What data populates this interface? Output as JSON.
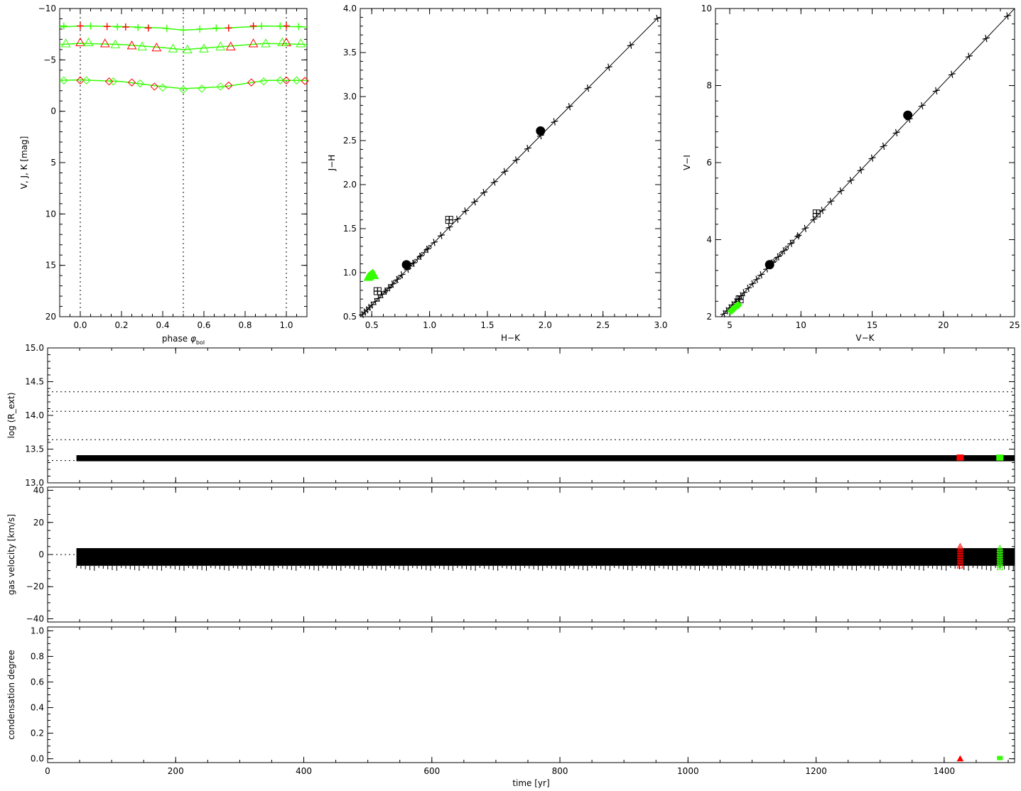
{
  "colors": {
    "axis": "#000000",
    "model": "#000000",
    "red": "#ff0000",
    "green": "#33ff00"
  },
  "chart_data": [
    {
      "id": "light_curves",
      "type": "scatter",
      "xlabel": "phase φbol",
      "xlabel_main": "phase ",
      "xlabel_sym": "φ",
      "xlabel_sub": "bol",
      "ylabel": "V, J, K  [mag]",
      "xlim": [
        -0.1,
        1.1
      ],
      "ylim": [
        20,
        -10
      ],
      "xticks": [
        0.0,
        0.2,
        0.4,
        0.6,
        0.8,
        1.0
      ],
      "xtick_labels": [
        "0.0",
        "0.2",
        "0.4",
        "0.6",
        "0.8",
        "1.0"
      ],
      "yticks": [
        -10,
        -5,
        0,
        5,
        10,
        15,
        20
      ],
      "ytick_labels": [
        "−10",
        "−5",
        "0",
        "5",
        "10",
        "15",
        "20"
      ],
      "vlines": [
        0.0,
        0.5,
        1.0
      ],
      "series": [
        {
          "band": "K",
          "marker": "plus",
          "curve": [
            [
              -0.1,
              -8.2
            ],
            [
              0.0,
              -8.3
            ],
            [
              0.2,
              -8.25
            ],
            [
              0.4,
              -8.1
            ],
            [
              0.5,
              -7.9
            ],
            [
              0.7,
              -8.1
            ],
            [
              0.9,
              -8.3
            ],
            [
              1.1,
              -8.2
            ]
          ],
          "red": [
            [
              0.0,
              -8.3
            ],
            [
              0.13,
              -8.25
            ],
            [
              0.22,
              -8.2
            ],
            [
              0.33,
              -8.1
            ],
            [
              0.72,
              -8.1
            ],
            [
              0.84,
              -8.3
            ],
            [
              1.0,
              -8.3
            ]
          ],
          "green": [
            [
              -0.08,
              -8.3
            ],
            [
              0.05,
              -8.3
            ],
            [
              0.18,
              -8.2
            ],
            [
              0.28,
              -8.15
            ],
            [
              0.42,
              -8.05
            ],
            [
              0.5,
              -7.9
            ],
            [
              0.58,
              -8.0
            ],
            [
              0.66,
              -8.1
            ],
            [
              0.88,
              -8.3
            ],
            [
              0.97,
              -8.3
            ],
            [
              1.06,
              -8.25
            ]
          ]
        },
        {
          "band": "J",
          "marker": "triangle",
          "curve": [
            [
              -0.1,
              -6.5
            ],
            [
              0.0,
              -6.6
            ],
            [
              0.2,
              -6.5
            ],
            [
              0.4,
              -6.2
            ],
            [
              0.5,
              -6.0
            ],
            [
              0.7,
              -6.3
            ],
            [
              0.9,
              -6.6
            ],
            [
              1.1,
              -6.5
            ]
          ],
          "red": [
            [
              0.0,
              -6.7
            ],
            [
              0.12,
              -6.6
            ],
            [
              0.25,
              -6.4
            ],
            [
              0.37,
              -6.2
            ],
            [
              0.73,
              -6.3
            ],
            [
              0.84,
              -6.6
            ],
            [
              1.0,
              -6.7
            ]
          ],
          "green": [
            [
              -0.07,
              -6.6
            ],
            [
              0.04,
              -6.7
            ],
            [
              0.17,
              -6.5
            ],
            [
              0.3,
              -6.3
            ],
            [
              0.45,
              -6.1
            ],
            [
              0.52,
              -6.0
            ],
            [
              0.6,
              -6.1
            ],
            [
              0.68,
              -6.3
            ],
            [
              0.9,
              -6.6
            ],
            [
              0.98,
              -6.7
            ],
            [
              1.07,
              -6.6
            ]
          ]
        },
        {
          "band": "V",
          "marker": "diamond",
          "curve": [
            [
              -0.1,
              -3.0
            ],
            [
              0.0,
              -3.05
            ],
            [
              0.2,
              -2.9
            ],
            [
              0.4,
              -2.4
            ],
            [
              0.5,
              -2.2
            ],
            [
              0.7,
              -2.4
            ],
            [
              0.9,
              -3.0
            ],
            [
              1.1,
              -3.0
            ]
          ],
          "red": [
            [
              0.0,
              -3.0
            ],
            [
              0.14,
              -2.9
            ],
            [
              0.25,
              -2.8
            ],
            [
              0.36,
              -2.4
            ],
            [
              0.72,
              -2.5
            ],
            [
              0.83,
              -2.8
            ],
            [
              1.0,
              -3.0
            ],
            [
              1.09,
              -2.95
            ]
          ],
          "green": [
            [
              -0.08,
              -3.0
            ],
            [
              0.03,
              -3.0
            ],
            [
              0.16,
              -2.9
            ],
            [
              0.29,
              -2.7
            ],
            [
              0.4,
              -2.3
            ],
            [
              0.5,
              -2.1
            ],
            [
              0.59,
              -2.2
            ],
            [
              0.68,
              -2.4
            ],
            [
              0.89,
              -2.9
            ],
            [
              0.97,
              -3.0
            ],
            [
              1.05,
              -3.0
            ]
          ]
        }
      ]
    },
    {
      "id": "jh_hk",
      "type": "line",
      "xlabel": "H−K",
      "ylabel": "J−H",
      "xlim": [
        0.4,
        3.0
      ],
      "ylim": [
        0.5,
        4.0
      ],
      "xticks": [
        0.5,
        1.0,
        1.5,
        2.0,
        2.5,
        3.0
      ],
      "xtick_labels": [
        "0.5",
        "1.0",
        "1.5",
        "2.0",
        "2.5",
        "3.0"
      ],
      "yticks": [
        0.5,
        1.0,
        1.5,
        2.0,
        2.5,
        3.0,
        3.5,
        4.0
      ],
      "ytick_labels": [
        "0.5",
        "1.0",
        "1.5",
        "2.0",
        "2.5",
        "3.0",
        "3.5",
        "4.0"
      ],
      "line": [
        [
          0.4,
          0.5
        ],
        [
          2.98,
          3.9
        ]
      ],
      "plus_points": [
        0.42,
        0.44,
        0.46,
        0.48,
        0.5,
        0.53,
        0.56,
        0.59,
        0.62,
        0.65,
        0.68,
        0.72,
        0.76,
        0.81,
        0.86,
        0.92,
        0.98,
        1.04,
        1.1,
        1.17,
        1.24,
        1.31,
        1.39,
        1.47,
        1.56,
        1.65,
        1.75,
        1.85,
        1.96,
        2.08,
        2.21,
        2.37,
        2.55,
        2.74,
        2.97
      ],
      "squares": [
        [
          0.55,
          0.79
        ],
        [
          1.17,
          1.6
        ]
      ],
      "small_circles": [
        0.62,
        0.66,
        0.7,
        0.74,
        0.82,
        0.85,
        0.88,
        0.91,
        0.94,
        0.97,
        1.0
      ],
      "filled_circles": [
        [
          0.8,
          1.09
        ],
        [
          1.96,
          2.61
        ]
      ],
      "green_triangles": [
        [
          0.47,
          0.95
        ],
        [
          0.49,
          0.97
        ],
        [
          0.5,
          0.98
        ],
        [
          0.51,
          0.99
        ],
        [
          0.48,
          0.96
        ],
        [
          0.52,
          0.97
        ]
      ]
    },
    {
      "id": "vi_vk",
      "type": "line",
      "xlabel": "V−K",
      "ylabel": "V−I",
      "xlim": [
        4,
        25
      ],
      "ylim": [
        2,
        10
      ],
      "xticks": [
        5,
        10,
        15,
        20,
        25
      ],
      "xtick_labels": [
        "5",
        "10",
        "15",
        "20",
        "25"
      ],
      "yticks": [
        2,
        4,
        6,
        8,
        10
      ],
      "ytick_labels": [
        "2",
        "4",
        "6",
        "8",
        "10"
      ],
      "line": [
        [
          4.4,
          2.0
        ],
        [
          25,
          10.0
        ]
      ],
      "plus_points": [
        4.6,
        4.8,
        5.0,
        5.2,
        5.4,
        5.6,
        5.8,
        6.0,
        6.3,
        6.6,
        6.9,
        7.2,
        7.6,
        8.0,
        8.4,
        8.8,
        9.3,
        9.8,
        10.3,
        10.9,
        11.5,
        12.1,
        12.8,
        13.5,
        14.2,
        15.0,
        15.8,
        16.7,
        17.6,
        18.5,
        19.5,
        20.6,
        21.8,
        23.0,
        24.5
      ],
      "squares": [
        [
          5.7,
          2.45
        ],
        [
          11.1,
          4.68
        ]
      ],
      "small_circles": [
        8.2,
        8.6,
        9.0,
        9.4,
        9.8
      ],
      "filled_circles": [
        [
          7.8,
          3.35
        ],
        [
          17.5,
          7.23
        ]
      ],
      "green_diamonds": [
        [
          5.1,
          2.15
        ],
        [
          5.3,
          2.22
        ],
        [
          5.5,
          2.28
        ],
        [
          5.6,
          2.3
        ],
        [
          5.2,
          2.18
        ]
      ]
    },
    {
      "id": "log_r_ext",
      "type": "line",
      "xlabel": "",
      "ylabel": "log (R_ext)",
      "xlim": [
        0,
        1510
      ],
      "ylim": [
        13.0,
        15.0
      ],
      "xticks": [
        0,
        200,
        400,
        600,
        800,
        1000,
        1200,
        1400
      ],
      "yticks": [
        13.0,
        13.5,
        14.0,
        14.5,
        15.0
      ],
      "ytick_labels": [
        "13.0",
        "13.5",
        "14.0",
        "14.5",
        "15.0"
      ],
      "hlines": [
        13.33,
        13.64,
        14.06,
        14.35
      ],
      "band": {
        "x_start": 45,
        "x_end": 1510,
        "y_low": 13.32,
        "y_high": 13.41
      },
      "red_x": 1425,
      "green_x": 1487,
      "red_range": [
        13.33,
        13.42
      ],
      "green_range": [
        13.33,
        13.42
      ]
    },
    {
      "id": "gas_velocity",
      "type": "line",
      "xlabel": "",
      "ylabel": "gas velocity [km/s]",
      "xlim": [
        0,
        1510
      ],
      "ylim": [
        -42,
        42
      ],
      "xticks": [
        0,
        200,
        400,
        600,
        800,
        1000,
        1200,
        1400
      ],
      "yticks": [
        -40,
        -20,
        0,
        20,
        40
      ],
      "ytick_labels": [
        "−40",
        "−20",
        "0",
        "20",
        "40"
      ],
      "hlines": [
        0
      ],
      "band": {
        "x_start": 45,
        "x_end": 1510,
        "y_low": -7,
        "y_high": 4
      },
      "red_x": 1425,
      "green_x": 1487,
      "red_range": [
        -7,
        5
      ],
      "green_range": [
        -8,
        5
      ]
    },
    {
      "id": "condensation",
      "type": "scatter",
      "xlabel": "time [yr]",
      "ylabel": "condensation degree",
      "xlim": [
        0,
        1510
      ],
      "ylim": [
        -0.03,
        1.03
      ],
      "xticks": [
        0,
        200,
        400,
        600,
        800,
        1000,
        1200,
        1400
      ],
      "xtick_labels": [
        "0",
        "200",
        "400",
        "600",
        "800",
        "1000",
        "1200",
        "1400"
      ],
      "yticks": [
        0.0,
        0.2,
        0.4,
        0.6,
        0.8,
        1.0
      ],
      "ytick_labels": [
        "0.0",
        "0.2",
        "0.4",
        "0.6",
        "0.8",
        "1.0"
      ],
      "red_point": [
        1425,
        0.0
      ],
      "green_point": [
        1487,
        0.0
      ]
    }
  ]
}
